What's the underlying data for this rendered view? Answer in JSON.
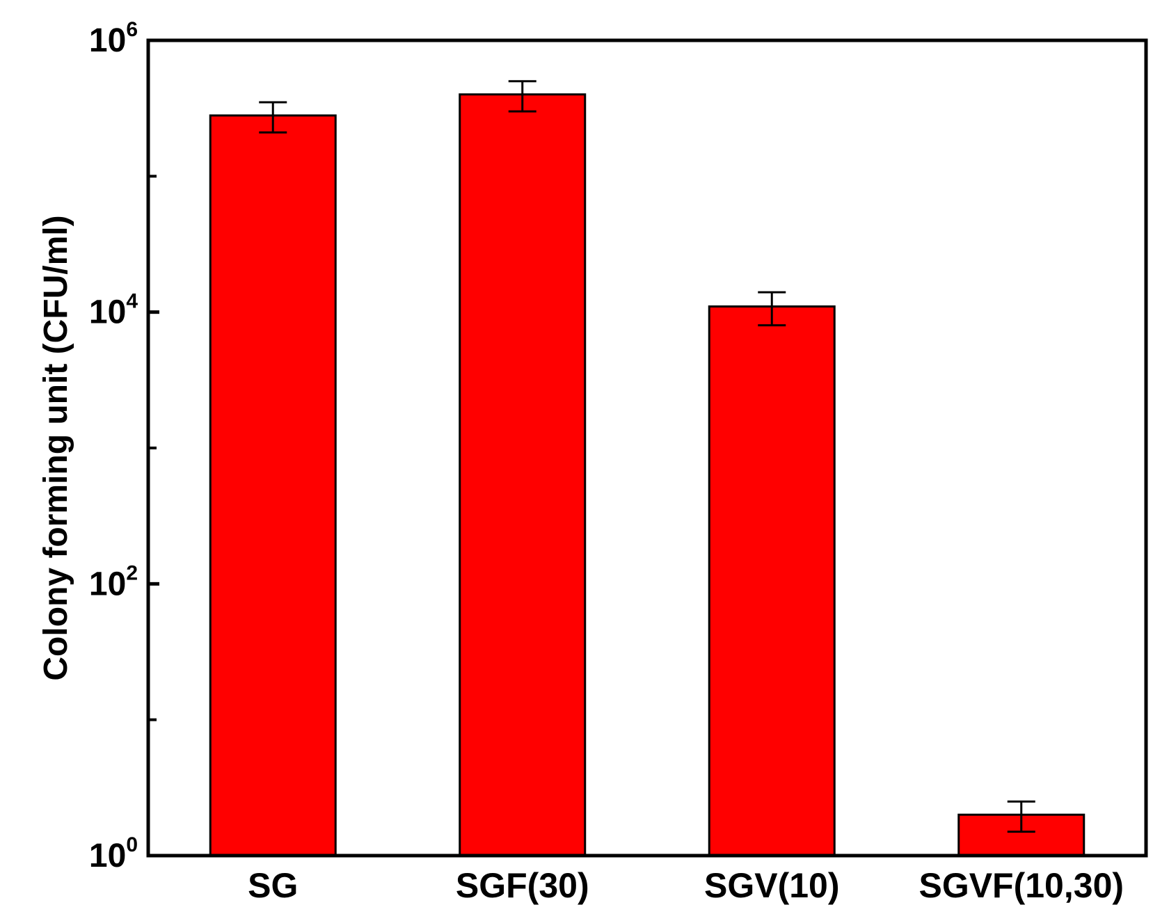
{
  "chart_data": {
    "type": "bar",
    "title": "",
    "xlabel": "",
    "ylabel": "Colony forming unit (CFU/ml)",
    "yscale": "log",
    "ylim": [
      1,
      1000000
    ],
    "yticks": [
      {
        "base": "10",
        "exp": "0",
        "value": 1
      },
      {
        "base": "10",
        "exp": "2",
        "value": 100
      },
      {
        "base": "10",
        "exp": "4",
        "value": 10000
      },
      {
        "base": "10",
        "exp": "6",
        "value": 1000000
      }
    ],
    "minor_ticks": [
      10,
      1000,
      100000
    ],
    "categories": [
      "SG",
      "SGF(30)",
      "SGV(10)",
      "SGVF(10,30)"
    ],
    "values": [
      280000,
      400000,
      11000,
      2
    ],
    "error_low": [
      210000,
      300000,
      8000,
      1.5
    ],
    "error_high": [
      350000,
      500000,
      14000,
      2.5
    ],
    "bar_color": "#ff0000",
    "grid": false,
    "legend": "none"
  }
}
